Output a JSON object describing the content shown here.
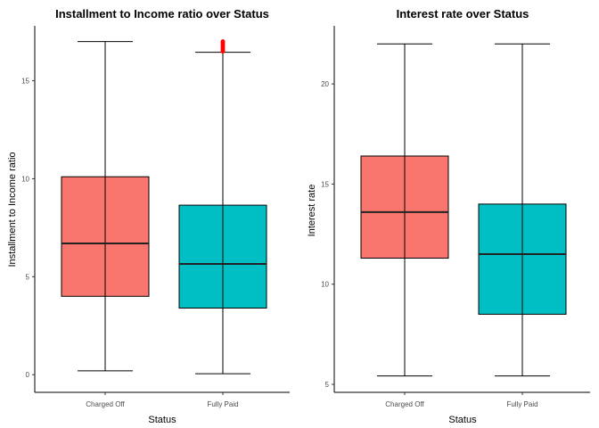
{
  "chart_data": [
    {
      "type": "boxplot",
      "title": "Installment to Income ratio over Status",
      "xlabel": "Status",
      "ylabel": "Installment to Income ratio",
      "ylim": [
        -0.9,
        17.8
      ],
      "yticks": [
        0,
        5,
        10,
        15
      ],
      "categories": [
        "Charged Off",
        "Fully Paid"
      ],
      "boxes": [
        {
          "category": "Charged Off",
          "whisker_low": 0.2,
          "q1": 4.0,
          "median": 6.7,
          "q3": 10.1,
          "whisker_high": 17.0,
          "outliers": [],
          "fill": "#F8766D"
        },
        {
          "category": "Fully Paid",
          "whisker_low": 0.05,
          "q1": 3.4,
          "median": 5.65,
          "q3": 8.65,
          "whisker_high": 16.45,
          "outliers": [
            16.5,
            16.6,
            16.7,
            16.8,
            16.9,
            17.0
          ],
          "fill": "#00BFC4"
        }
      ],
      "outlier_color": "#FF0000",
      "grid": false
    },
    {
      "type": "boxplot",
      "title": "Interest rate over Status",
      "xlabel": "Status",
      "ylabel": "Interest rate",
      "ylim": [
        4.6,
        22.9
      ],
      "yticks": [
        5,
        10,
        15,
        20
      ],
      "categories": [
        "Charged Off",
        "Fully Paid"
      ],
      "boxes": [
        {
          "category": "Charged Off",
          "whisker_low": 5.42,
          "q1": 11.3,
          "median": 13.6,
          "q3": 16.4,
          "whisker_high": 22.0,
          "outliers": [],
          "fill": "#F8766D"
        },
        {
          "category": "Fully Paid",
          "whisker_low": 5.42,
          "q1": 8.5,
          "median": 11.5,
          "q3": 14.0,
          "whisker_high": 22.0,
          "outliers": [],
          "fill": "#00BFC4"
        }
      ],
      "outlier_color": "#FF0000",
      "grid": false
    }
  ]
}
